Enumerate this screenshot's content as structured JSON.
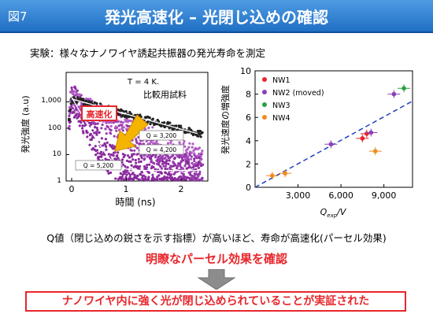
{
  "header": {
    "figure_label": "図7",
    "title": "発光高速化 – 光閉じ込めの確認"
  },
  "subtitle": "実験：様々なナノワイヤ誘起共振器の発光寿命を測定",
  "left_chart": {
    "ylabel": "発光強度 (a.u)",
    "xlabel": "時間 (ns)",
    "y_ticks": [
      "1",
      "10",
      "100",
      "1,000"
    ],
    "x_ticks": [
      "0",
      "1",
      "2"
    ],
    "temperature": "T = 4 K.",
    "reference_label": "比較用試料",
    "speedup_label": "高速化",
    "q_labels": [
      "Q = 3,200",
      "Q = 4,200",
      "Q = 5,200"
    ]
  },
  "chart_data": {
    "type": "scatter",
    "ylabel": "発光速度の増強度",
    "xlabel": "Qexp/V",
    "x_ticks": [
      "3,000",
      "6,000",
      "9,000"
    ],
    "y_ticks": [
      "0",
      "2",
      "4",
      "6",
      "8",
      "10"
    ],
    "xlim": [
      0,
      11000
    ],
    "ylim": [
      0,
      10
    ],
    "legend_position": "top-left",
    "series": [
      {
        "name": "NW1",
        "color": "#e8262b",
        "points": [
          [
            7500,
            4.2
          ],
          [
            7800,
            4.6
          ]
        ]
      },
      {
        "name": "NW2 (moved)",
        "color": "#8e3fb5",
        "points": [
          [
            5300,
            3.7
          ],
          [
            8100,
            4.7
          ],
          [
            9700,
            8.0
          ]
        ]
      },
      {
        "name": "NW3",
        "color": "#2e9e3e",
        "points": [
          [
            10400,
            8.5
          ]
        ]
      },
      {
        "name": "NW4",
        "color": "#f28c1b",
        "points": [
          [
            1200,
            1.0
          ],
          [
            2100,
            1.2
          ],
          [
            8400,
            3.1
          ]
        ]
      }
    ],
    "fit_line": {
      "from": [
        0,
        0
      ],
      "to": [
        11000,
        7.4
      ]
    }
  },
  "body_text": "Q値（閉じ込めの鋭さを示す指標）が高いほど、寿命が高速化(パーセル効果)",
  "highlight": "明瞭なパーセル効果を確認",
  "conclusion": "ナノワイヤ内に強く光が閉じ込められていることが実証された",
  "colors": {
    "title_bar": "#2b7fd4",
    "accent_red": "#e8262b",
    "arrow_yellow": "#f5b400",
    "fit_line": "#1f3fbf"
  }
}
